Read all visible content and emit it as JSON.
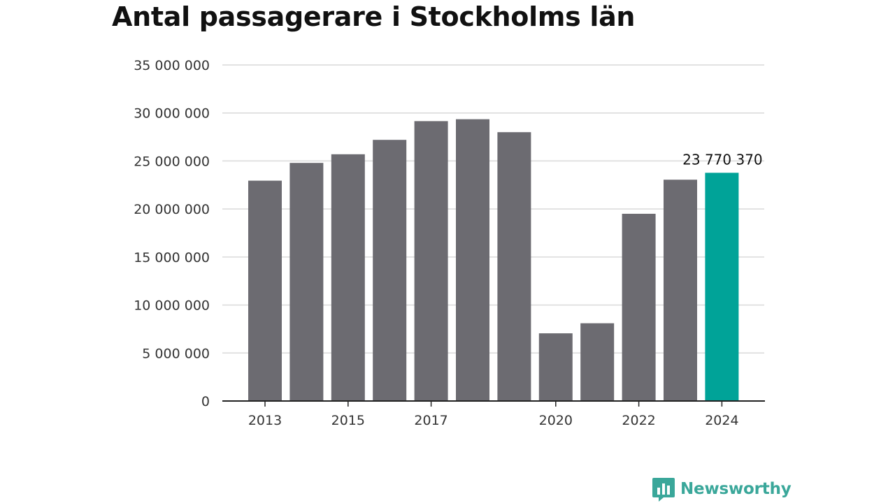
{
  "title": "Antal passagerare i Stockholms län",
  "brand": {
    "name": "Newsworthy",
    "icon": "bar-chart-speech-icon",
    "color": "#3aa79a"
  },
  "colors": {
    "bar": "#6c6b71",
    "highlight": "#00a398",
    "grid": "#d9d9d9",
    "axis": "#222222"
  },
  "chart_data": {
    "type": "bar",
    "title": "Antal passagerare i Stockholms län",
    "xlabel": "",
    "ylabel": "",
    "categories": [
      "2013",
      "2014",
      "2015",
      "2016",
      "2017",
      "2018",
      "2019",
      "2020",
      "2021",
      "2022",
      "2023",
      "2024"
    ],
    "x_tick_labels": [
      "2013",
      "2015",
      "2017",
      "2020",
      "2022",
      "2024"
    ],
    "values": [
      22950000,
      24800000,
      25700000,
      27200000,
      29150000,
      29350000,
      28000000,
      7050000,
      8100000,
      19500000,
      23050000,
      23770370
    ],
    "highlight_index": 11,
    "data_labels": [
      {
        "category": "2024",
        "text": "23 770 370"
      }
    ],
    "ylim": [
      0,
      35000000
    ],
    "y_ticks": [
      0,
      5000000,
      10000000,
      15000000,
      20000000,
      25000000,
      30000000,
      35000000
    ],
    "y_tick_labels": [
      "0",
      "5 000 000",
      "10 000 000",
      "15 000 000",
      "20 000 000",
      "25 000 000",
      "30 000 000",
      "35 000 000"
    ],
    "grid": true,
    "legend": "none"
  }
}
